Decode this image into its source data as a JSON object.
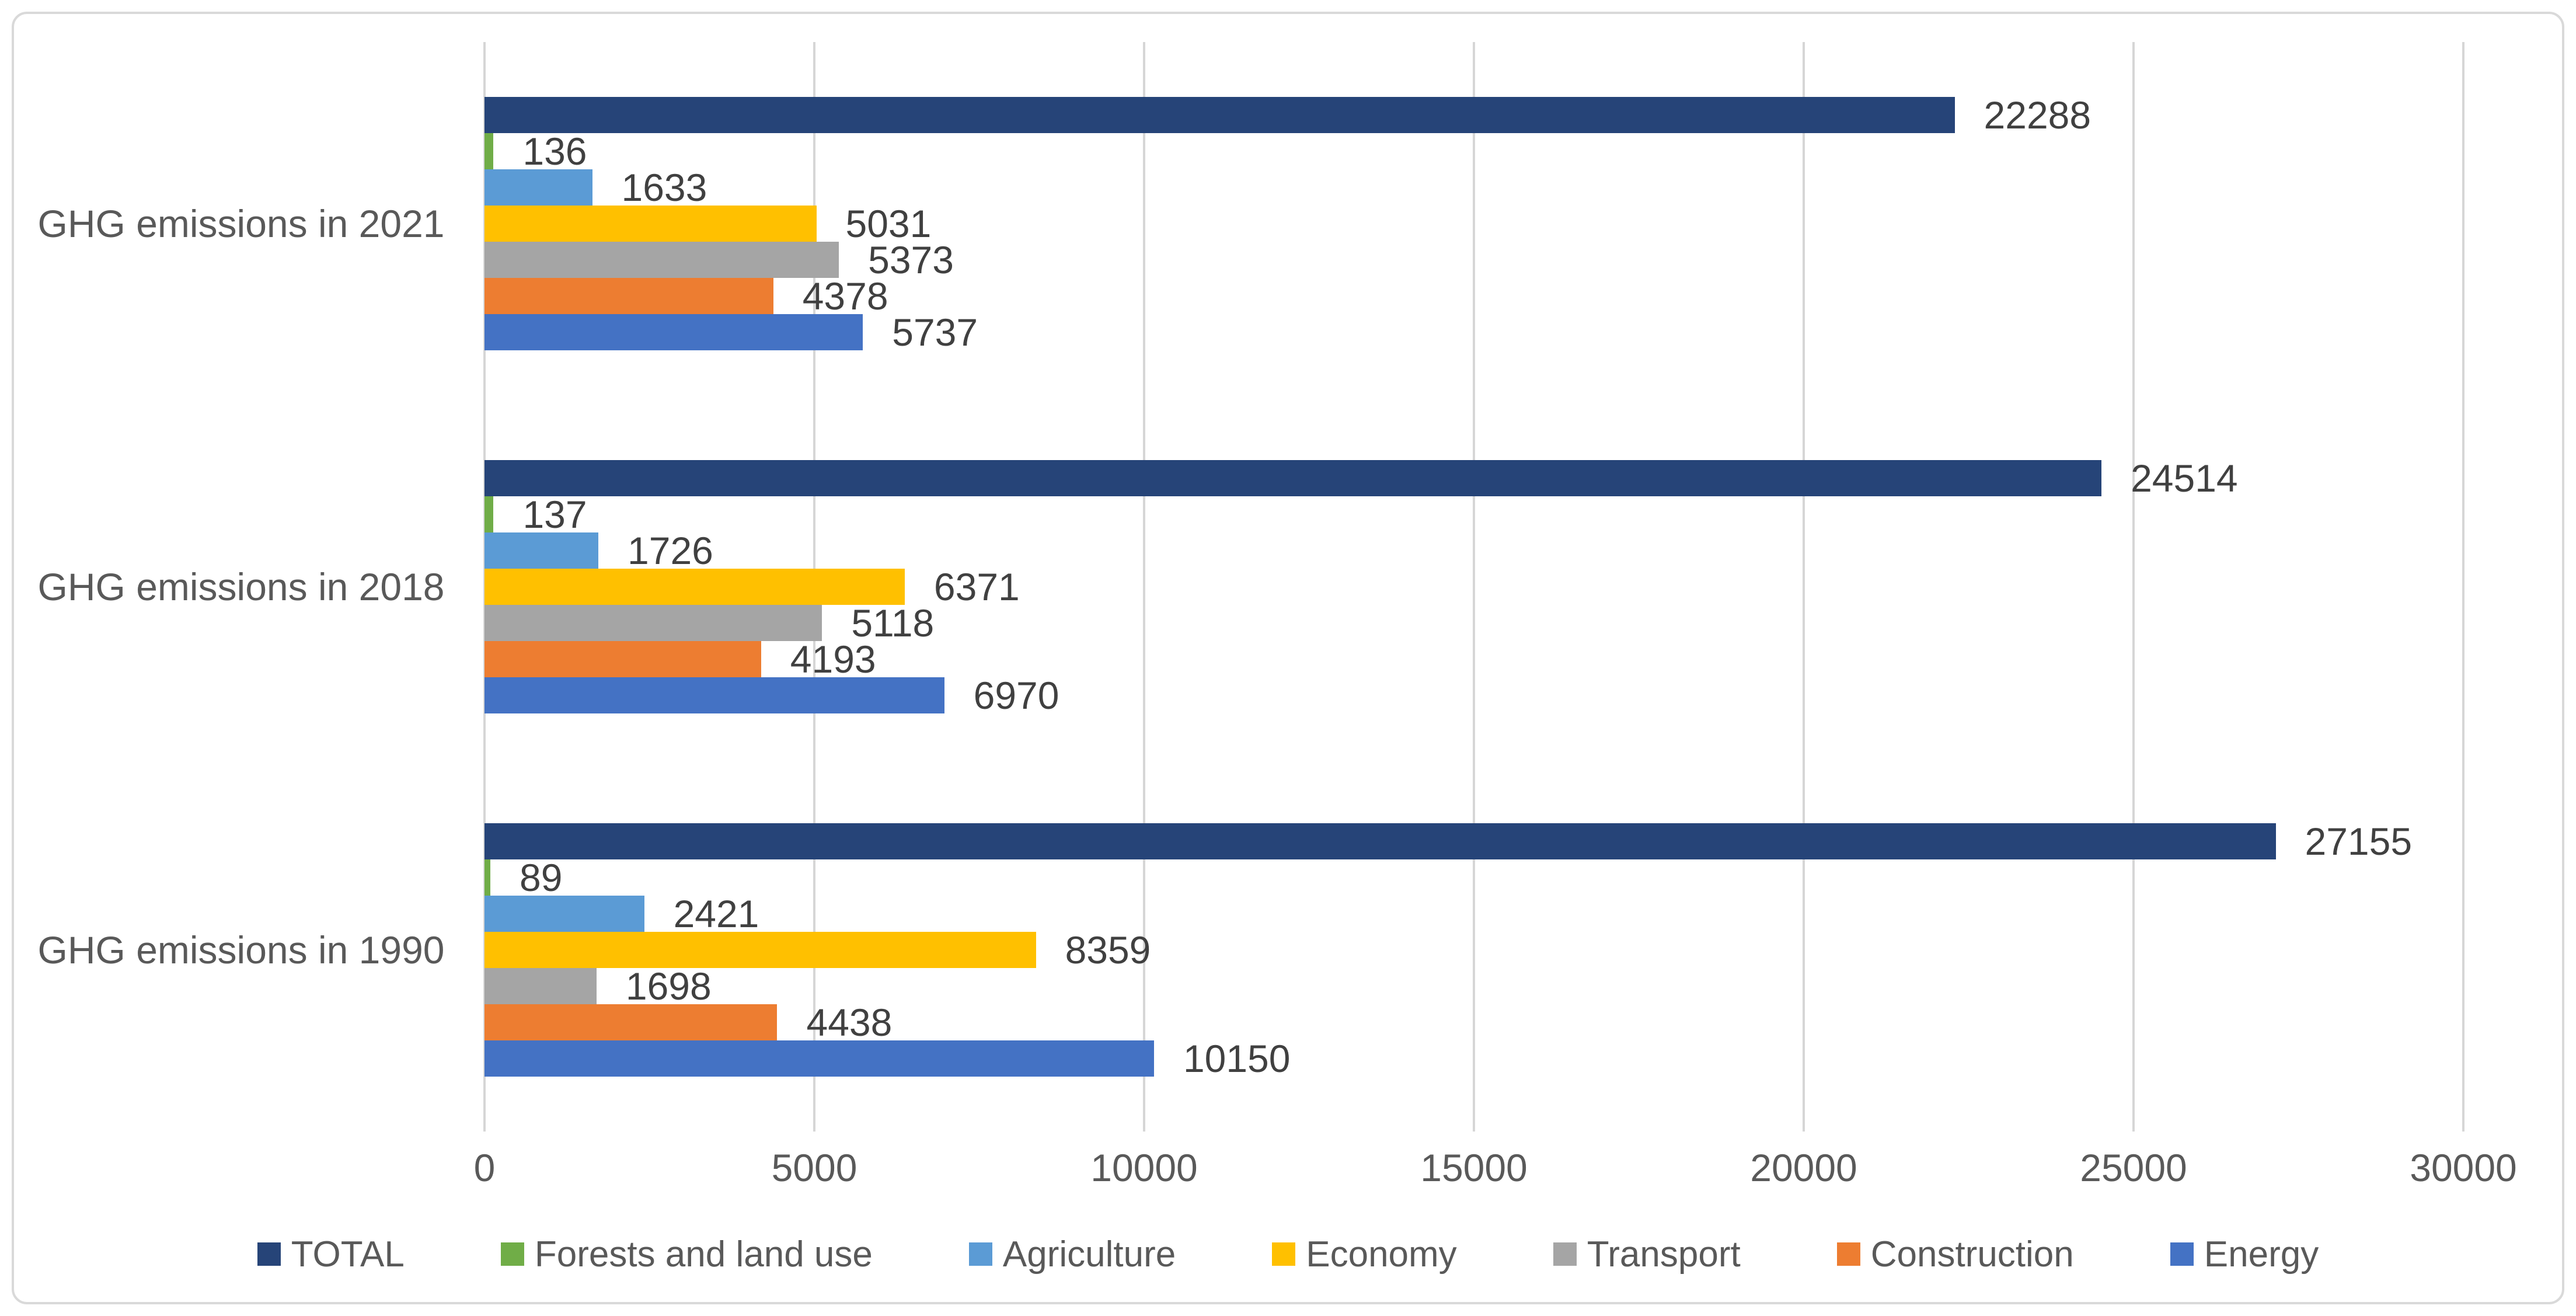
{
  "chart_data": {
    "type": "bar",
    "orientation": "horizontal",
    "title": "",
    "categories": [
      "GHG emissions in 2021",
      "GHG emissions in 2018",
      "GHG emissions in 1990"
    ],
    "series": [
      {
        "name": "TOTAL",
        "color": "#264478",
        "values": [
          22288,
          24514,
          27155
        ]
      },
      {
        "name": "Forests and land use",
        "color": "#70AD47",
        "values": [
          136,
          137,
          89
        ]
      },
      {
        "name": "Agriculture",
        "color": "#5B9BD5",
        "values": [
          1633,
          1726,
          2421
        ]
      },
      {
        "name": "Economy",
        "color": "#FFC000",
        "values": [
          5031,
          6371,
          8359
        ]
      },
      {
        "name": "Transport",
        "color": "#A5A5A5",
        "values": [
          5373,
          5118,
          1698
        ]
      },
      {
        "name": "Construction",
        "color": "#ED7D31",
        "values": [
          4378,
          4193,
          4438
        ]
      },
      {
        "name": "Energy",
        "color": "#4472C4",
        "values": [
          5737,
          6970,
          10150
        ]
      }
    ],
    "xlim": [
      0,
      30000
    ],
    "x_ticks": [
      0,
      5000,
      10000,
      15000,
      20000,
      25000,
      30000
    ],
    "grid": true,
    "gridline_style": "vertical-major",
    "data_labels": "outside-end",
    "legend_position": "bottom"
  },
  "styles": {
    "background": "#FFFFFF",
    "frame_border_color": "#D9D9D9",
    "gridline_color": "#D6D6D6",
    "tick_label_color": "#595959",
    "category_label_color": "#595959",
    "data_label_color": "#404040",
    "legend_text_color": "#595959"
  }
}
